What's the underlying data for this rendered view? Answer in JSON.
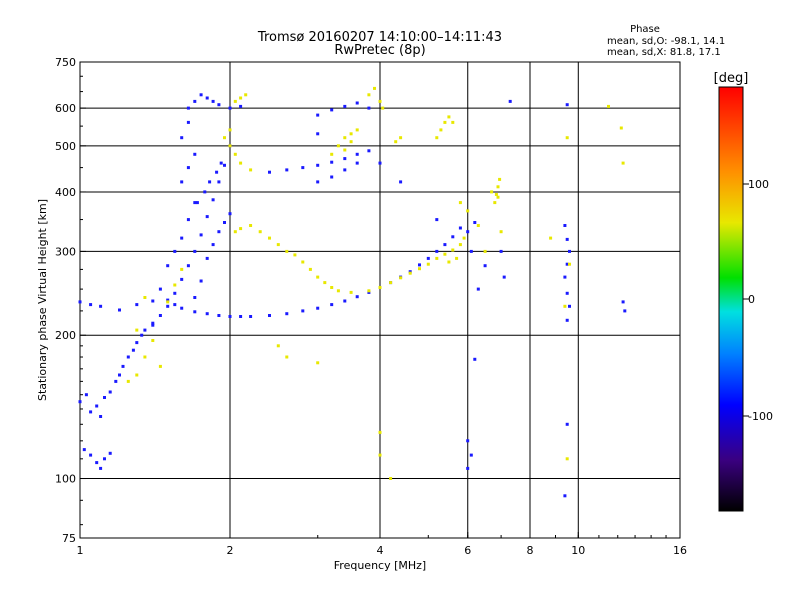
{
  "chart_data": {
    "type": "scatter",
    "title": "Tromsø 20160207 14:10:00–14:11:43",
    "subtitle": "RwPretec (8p)",
    "xlabel": "Frequency [MHz]",
    "ylabel": "Stationary phase Virtual Height [km]",
    "x_scale": "log",
    "y_scale": "log",
    "xlim": [
      1,
      16
    ],
    "ylim": [
      75,
      750
    ],
    "x_ticks": [
      "1",
      "2",
      "4",
      "6",
      "8",
      "10",
      "16"
    ],
    "y_ticks": [
      "75",
      "100",
      "200",
      "300",
      "400",
      "500",
      "600",
      "750"
    ],
    "grid": true,
    "phase_stats": {
      "title": "Phase",
      "o_line": "mean, sd,O: -98.1, 14.1",
      "x_line": "mean, sd,X:  81.8, 17.1"
    },
    "colorbar": {
      "label": "[deg]",
      "range": [
        -180,
        180
      ],
      "ticks": [
        "100",
        "0",
        "-100"
      ]
    },
    "series": [
      {
        "name": "O",
        "phase_mean": -98.1,
        "color": "#1a1aff",
        "points": [
          [
            1.0,
            235
          ],
          [
            1.05,
            232
          ],
          [
            1.1,
            230
          ],
          [
            1.2,
            226
          ],
          [
            1.3,
            232
          ],
          [
            1.4,
            236
          ],
          [
            1.5,
            237
          ],
          [
            1.55,
            232
          ],
          [
            1.6,
            228
          ],
          [
            1.7,
            224
          ],
          [
            1.8,
            222
          ],
          [
            1.9,
            220
          ],
          [
            2.0,
            219
          ],
          [
            2.1,
            219
          ],
          [
            2.2,
            219
          ],
          [
            2.4,
            220
          ],
          [
            2.6,
            222
          ],
          [
            2.8,
            225
          ],
          [
            3.0,
            228
          ],
          [
            3.2,
            232
          ],
          [
            3.4,
            236
          ],
          [
            3.6,
            241
          ],
          [
            3.8,
            246
          ],
          [
            4.0,
            252
          ],
          [
            4.2,
            258
          ],
          [
            4.4,
            265
          ],
          [
            4.6,
            272
          ],
          [
            4.8,
            281
          ],
          [
            5.0,
            290
          ],
          [
            5.2,
            300
          ],
          [
            5.4,
            310
          ],
          [
            5.6,
            322
          ],
          [
            5.8,
            336
          ],
          [
            1.0,
            145
          ],
          [
            1.03,
            150
          ],
          [
            1.05,
            138
          ],
          [
            1.08,
            142
          ],
          [
            1.1,
            135
          ],
          [
            1.12,
            148
          ],
          [
            1.15,
            152
          ],
          [
            1.18,
            160
          ],
          [
            1.2,
            165
          ],
          [
            1.22,
            172
          ],
          [
            1.25,
            180
          ],
          [
            1.28,
            186
          ],
          [
            1.3,
            193
          ],
          [
            1.33,
            200
          ],
          [
            1.35,
            205
          ],
          [
            1.4,
            212
          ],
          [
            1.45,
            220
          ],
          [
            1.5,
            230
          ],
          [
            1.55,
            245
          ],
          [
            1.6,
            262
          ],
          [
            1.65,
            280
          ],
          [
            1.7,
            300
          ],
          [
            1.75,
            325
          ],
          [
            1.8,
            355
          ],
          [
            1.85,
            385
          ],
          [
            1.9,
            420
          ],
          [
            1.95,
            455
          ],
          [
            2.0,
            500
          ],
          [
            1.02,
            115
          ],
          [
            1.05,
            112
          ],
          [
            1.08,
            108
          ],
          [
            1.1,
            105
          ],
          [
            1.12,
            110
          ],
          [
            1.15,
            113
          ],
          [
            1.65,
            600
          ],
          [
            1.7,
            620
          ],
          [
            1.75,
            640
          ],
          [
            1.8,
            630
          ],
          [
            1.85,
            620
          ],
          [
            1.9,
            610
          ],
          [
            2.0,
            600
          ],
          [
            2.1,
            605
          ],
          [
            1.7,
            240
          ],
          [
            1.75,
            260
          ],
          [
            1.8,
            290
          ],
          [
            1.85,
            310
          ],
          [
            1.9,
            330
          ],
          [
            1.95,
            345
          ],
          [
            2.0,
            360
          ],
          [
            1.72,
            380
          ],
          [
            1.78,
            400
          ],
          [
            1.82,
            420
          ],
          [
            1.88,
            440
          ],
          [
            1.92,
            460
          ],
          [
            1.4,
            210
          ],
          [
            1.45,
            250
          ],
          [
            1.5,
            280
          ],
          [
            1.55,
            300
          ],
          [
            1.6,
            320
          ],
          [
            1.65,
            350
          ],
          [
            1.7,
            380
          ],
          [
            1.6,
            420
          ],
          [
            1.65,
            450
          ],
          [
            1.7,
            480
          ],
          [
            1.6,
            520
          ],
          [
            1.65,
            560
          ],
          [
            2.4,
            440
          ],
          [
            2.6,
            445
          ],
          [
            2.8,
            450
          ],
          [
            3.0,
            455
          ],
          [
            3.2,
            462
          ],
          [
            3.4,
            470
          ],
          [
            3.6,
            480
          ],
          [
            3.8,
            488
          ],
          [
            3.0,
            420
          ],
          [
            3.2,
            430
          ],
          [
            3.4,
            445
          ],
          [
            3.6,
            460
          ],
          [
            3.0,
            580
          ],
          [
            3.2,
            595
          ],
          [
            3.4,
            605
          ],
          [
            3.6,
            615
          ],
          [
            3.8,
            600
          ],
          [
            3.0,
            530
          ],
          [
            6.0,
            330
          ],
          [
            6.2,
            345
          ],
          [
            6.1,
            300
          ],
          [
            6.3,
            250
          ],
          [
            6.5,
            280
          ],
          [
            7.0,
            300
          ],
          [
            7.1,
            265
          ],
          [
            9.5,
            215
          ],
          [
            9.6,
            230
          ],
          [
            9.5,
            245
          ],
          [
            9.4,
            265
          ],
          [
            9.5,
            282
          ],
          [
            9.6,
            300
          ],
          [
            9.5,
            318
          ],
          [
            9.4,
            340
          ],
          [
            9.5,
            610
          ],
          [
            9.5,
            130
          ],
          [
            9.4,
            92
          ],
          [
            12.3,
            235
          ],
          [
            12.4,
            225
          ],
          [
            6.0,
            120
          ],
          [
            6.1,
            112
          ],
          [
            6.0,
            105
          ],
          [
            6.2,
            178
          ],
          [
            4.0,
            460
          ],
          [
            4.4,
            420
          ],
          [
            5.2,
            350
          ],
          [
            7.3,
            620
          ]
        ]
      },
      {
        "name": "X",
        "phase_mean": 81.8,
        "color": "#e8e800",
        "points": [
          [
            2.8,
            285
          ],
          [
            2.9,
            275
          ],
          [
            3.0,
            265
          ],
          [
            3.1,
            258
          ],
          [
            3.2,
            252
          ],
          [
            3.3,
            248
          ],
          [
            3.5,
            246
          ],
          [
            3.8,
            248
          ],
          [
            4.0,
            252
          ],
          [
            4.2,
            258
          ],
          [
            4.4,
            264
          ],
          [
            4.6,
            270
          ],
          [
            4.8,
            276
          ],
          [
            5.0,
            282
          ],
          [
            5.2,
            290
          ],
          [
            5.4,
            296
          ],
          [
            5.6,
            302
          ],
          [
            5.8,
            310
          ],
          [
            5.9,
            320
          ],
          [
            5.7,
            290
          ],
          [
            5.5,
            285
          ],
          [
            2.6,
            300
          ],
          [
            2.7,
            295
          ],
          [
            2.5,
            310
          ],
          [
            2.4,
            320
          ],
          [
            2.3,
            330
          ],
          [
            2.2,
            340
          ],
          [
            2.1,
            335
          ],
          [
            2.05,
            330
          ],
          [
            2.0,
            500
          ],
          [
            2.05,
            480
          ],
          [
            2.1,
            460
          ],
          [
            2.2,
            445
          ],
          [
            1.95,
            520
          ],
          [
            2.0,
            540
          ],
          [
            3.2,
            480
          ],
          [
            3.3,
            500
          ],
          [
            3.4,
            520
          ],
          [
            3.5,
            530
          ],
          [
            3.6,
            540
          ],
          [
            3.5,
            510
          ],
          [
            3.4,
            490
          ],
          [
            6.8,
            380
          ],
          [
            6.85,
            395
          ],
          [
            6.9,
            410
          ],
          [
            6.95,
            425
          ],
          [
            6.7,
            400
          ],
          [
            6.9,
            390
          ],
          [
            5.2,
            520
          ],
          [
            5.3,
            540
          ],
          [
            5.4,
            560
          ],
          [
            5.5,
            575
          ],
          [
            5.6,
            560
          ],
          [
            4.3,
            510
          ],
          [
            4.4,
            520
          ],
          [
            1.5,
            235
          ],
          [
            1.55,
            255
          ],
          [
            1.6,
            275
          ],
          [
            1.35,
            240
          ],
          [
            1.3,
            205
          ],
          [
            1.4,
            195
          ],
          [
            1.35,
            180
          ],
          [
            1.45,
            172
          ],
          [
            1.3,
            165
          ],
          [
            1.25,
            160
          ],
          [
            2.05,
            620
          ],
          [
            2.1,
            630
          ],
          [
            2.15,
            640
          ],
          [
            3.8,
            640
          ],
          [
            3.9,
            660
          ],
          [
            4.0,
            620
          ],
          [
            4.05,
            600
          ],
          [
            5.8,
            380
          ],
          [
            6.0,
            365
          ],
          [
            6.3,
            340
          ],
          [
            7.0,
            330
          ],
          [
            6.5,
            300
          ],
          [
            2.5,
            190
          ],
          [
            2.6,
            180
          ],
          [
            3.0,
            175
          ],
          [
            9.5,
            110
          ],
          [
            9.6,
            282
          ],
          [
            9.4,
            230
          ],
          [
            9.5,
            520
          ],
          [
            12.2,
            545
          ],
          [
            12.3,
            460
          ],
          [
            11.5,
            605
          ],
          [
            4.2,
            100
          ],
          [
            4.0,
            112
          ],
          [
            4.0,
            125
          ],
          [
            8.8,
            320
          ]
        ]
      }
    ]
  }
}
